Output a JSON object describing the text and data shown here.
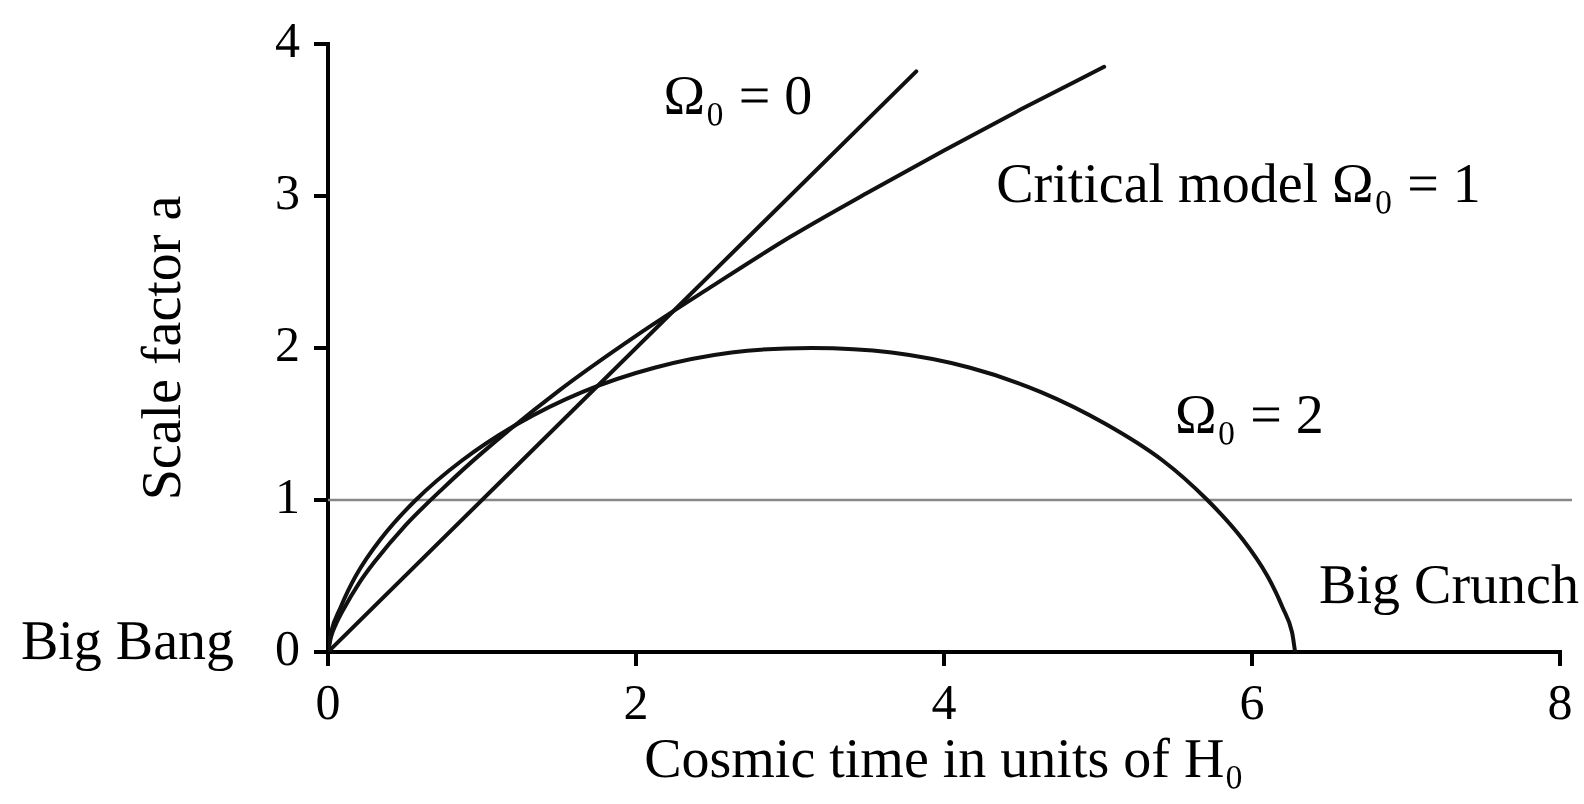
{
  "chart_data": {
    "type": "line",
    "xlabel": "Cosmic time in units of H₀",
    "ylabel": "Scale factor a",
    "xlim": [
      0,
      8
    ],
    "xticks": [
      0,
      2,
      4,
      6,
      8
    ],
    "ylim": [
      0,
      4
    ],
    "yticks": [
      0,
      1,
      2,
      3,
      4
    ],
    "grid": false,
    "marker": "none",
    "line_style": "solid",
    "series": [
      {
        "name": "Ω₀ = 0",
        "color": "#111111",
        "x": [
          0,
          3.82
        ],
        "values": [
          0,
          3.82
        ]
      },
      {
        "name": "Critical model Ω₀ = 1",
        "color": "#111111",
        "x": [
          0,
          0.02,
          0.05,
          0.1,
          0.2,
          0.3,
          0.5,
          0.75,
          1,
          1.5,
          2,
          2.5,
          3,
          3.5,
          4,
          4.5,
          5.04
        ],
        "values": [
          0,
          0.1,
          0.18,
          0.28,
          0.45,
          0.59,
          0.83,
          1.08,
          1.31,
          1.72,
          2.08,
          2.41,
          2.73,
          3.02,
          3.3,
          3.57,
          3.85
        ]
      },
      {
        "name": "Ω₀ = 2",
        "color": "#111111",
        "x": [
          0,
          0.02,
          0.08,
          0.18,
          0.34,
          0.57,
          0.87,
          1.23,
          1.65,
          2.12,
          2.62,
          3.14,
          3.66,
          4.17,
          4.63,
          5.05,
          5.42,
          5.71,
          5.94,
          6.1,
          6.2,
          6.26,
          6.28
        ],
        "values": [
          0,
          0.13,
          0.29,
          0.5,
          0.74,
          1,
          1.26,
          1.5,
          1.71,
          1.87,
          1.97,
          2,
          1.97,
          1.87,
          1.71,
          1.5,
          1.26,
          1,
          0.74,
          0.5,
          0.29,
          0.13,
          0
        ]
      }
    ],
    "ref_lines": [
      {
        "axis": "y",
        "value": 1,
        "color": "#888888"
      }
    ],
    "annotations": [
      {
        "text": "Big Bang",
        "x": 0,
        "y": 0
      },
      {
        "text": "Big Crunch",
        "x": 6.28,
        "y": 0
      }
    ]
  }
}
